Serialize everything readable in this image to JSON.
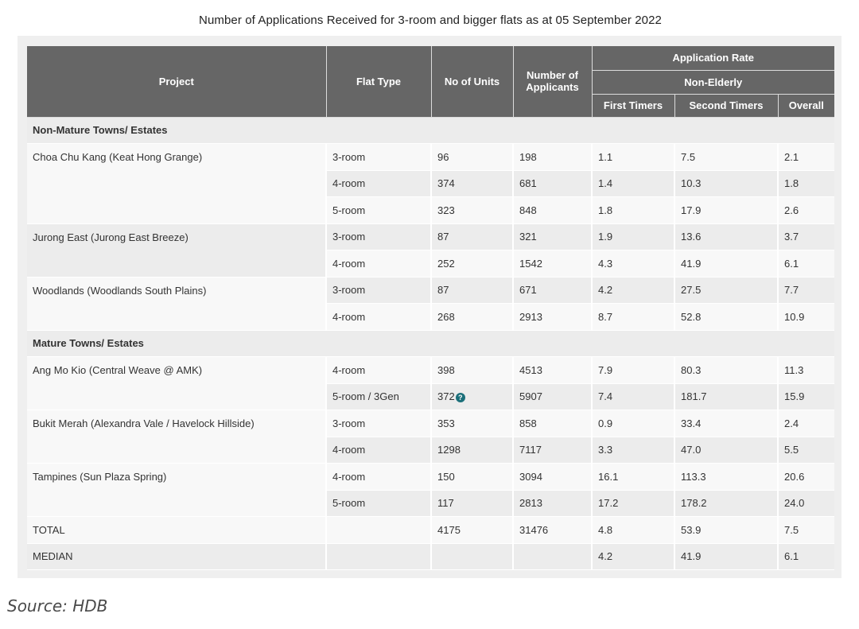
{
  "title": "Number of Applications Received for 3-room and bigger flats as at 05 September 2022",
  "colors": {
    "header_bg": "#666666",
    "rate_label": "#c0272d",
    "info_icon": "#1b6f7a"
  },
  "headers": {
    "project": "Project",
    "flat_type": "Flat Type",
    "units": "No of Units",
    "applicants": "Number of Applicants",
    "rate": "Application Rate",
    "non_elderly": "Non-Elderly",
    "first": "First Timers",
    "second": "Second Timers",
    "overall": "Overall"
  },
  "sections": [
    {
      "label": "Non-Mature Towns/ Estates",
      "projects": [
        {
          "name": "Choa Chu Kang (Keat Hong Grange)",
          "rows": [
            {
              "flat_type": "3-room",
              "units": "96",
              "applicants": "198",
              "first": "1.1",
              "second": "7.5",
              "overall": "2.1"
            },
            {
              "flat_type": "4-room",
              "units": "374",
              "applicants": "681",
              "first": "1.4",
              "second": "10.3",
              "overall": "1.8"
            },
            {
              "flat_type": "5-room",
              "units": "323",
              "applicants": "848",
              "first": "1.8",
              "second": "17.9",
              "overall": "2.6"
            }
          ]
        },
        {
          "name": "Jurong East (Jurong East Breeze)",
          "rows": [
            {
              "flat_type": "3-room",
              "units": "87",
              "applicants": "321",
              "first": "1.9",
              "second": "13.6",
              "overall": "3.7"
            },
            {
              "flat_type": "4-room",
              "units": "252",
              "applicants": "1542",
              "first": "4.3",
              "second": "41.9",
              "overall": "6.1"
            }
          ]
        },
        {
          "name": "Woodlands (Woodlands South Plains)",
          "rows": [
            {
              "flat_type": "3-room",
              "units": "87",
              "applicants": "671",
              "first": "4.2",
              "second": "27.5",
              "overall": "7.7"
            },
            {
              "flat_type": "4-room",
              "units": "268",
              "applicants": "2913",
              "first": "8.7",
              "second": "52.8",
              "overall": "10.9"
            }
          ]
        }
      ]
    },
    {
      "label": "Mature Towns/ Estates",
      "projects": [
        {
          "name": "Ang Mo Kio (Central Weave @ AMK)",
          "rows": [
            {
              "flat_type": "4-room",
              "units": "398",
              "applicants": "4513",
              "first": "7.9",
              "second": "80.3",
              "overall": "11.3"
            },
            {
              "flat_type": "5-room / 3Gen",
              "units": "372",
              "info_icon": "?",
              "applicants": "5907",
              "first": "7.4",
              "second": "181.7",
              "overall": "15.9"
            }
          ]
        },
        {
          "name": "Bukit Merah (Alexandra Vale / Havelock Hillside)",
          "rows": [
            {
              "flat_type": "3-room",
              "units": "353",
              "applicants": "858",
              "first": "0.9",
              "second": "33.4",
              "overall": "2.4"
            },
            {
              "flat_type": "4-room",
              "units": "1298",
              "applicants": "7117",
              "first": "3.3",
              "second": "47.0",
              "overall": "5.5"
            }
          ]
        },
        {
          "name": "Tampines (Sun Plaza Spring)",
          "rows": [
            {
              "flat_type": "4-room",
              "units": "150",
              "applicants": "3094",
              "first": "16.1",
              "second": "113.3",
              "overall": "20.6"
            },
            {
              "flat_type": "5-room",
              "units": "117",
              "applicants": "2813",
              "first": "17.2",
              "second": "178.2",
              "overall": "24.0"
            }
          ]
        }
      ]
    }
  ],
  "total": {
    "label": "TOTAL",
    "units": "4175",
    "applicants": "31476",
    "first": "4.8",
    "second": "53.9",
    "overall": "7.5"
  },
  "median": {
    "label": "MEDIAN",
    "units": "",
    "applicants": "",
    "first": "4.2",
    "second": "41.9",
    "overall": "6.1"
  },
  "source": "Source: HDB"
}
